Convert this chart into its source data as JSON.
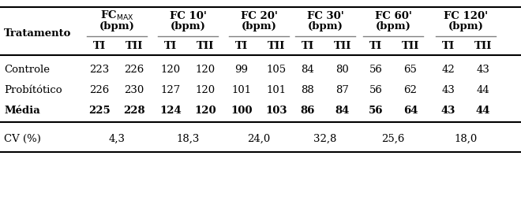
{
  "col_group_labels": [
    "FC$_{\\mathrm{MAX}}$",
    "FC 10'",
    "FC 20'",
    "FC 30'",
    "FC 60'",
    "FC 120'"
  ],
  "col_bpm": [
    "(bpm)",
    "(bpm)",
    "(bpm)",
    "(bpm)",
    "(bpm)",
    "(bpm)"
  ],
  "sub_headers": [
    "TI",
    "TII"
  ],
  "row_labels": [
    "Controle",
    "Probítótico",
    "Média"
  ],
  "rows": [
    [
      "223",
      "226",
      "120",
      "120",
      "99",
      "105",
      "84",
      "80",
      "56",
      "65",
      "42",
      "43"
    ],
    [
      "226",
      "230",
      "127",
      "120",
      "101",
      "101",
      "88",
      "87",
      "56",
      "62",
      "43",
      "44"
    ],
    [
      "225",
      "228",
      "124",
      "120",
      "100",
      "103",
      "86",
      "84",
      "56",
      "64",
      "43",
      "44"
    ]
  ],
  "cv_label": "CV (%)",
  "cv_values": [
    "4,3",
    "18,3",
    "24,0",
    "32,8",
    "25,6",
    "18,0"
  ],
  "background_color": "#ffffff",
  "text_color": "#000000",
  "fs_header": 9.5,
  "fs_body": 9.5
}
